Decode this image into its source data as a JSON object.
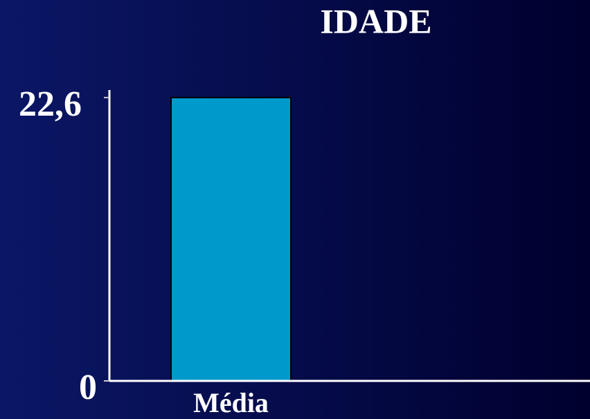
{
  "chart_data": {
    "type": "bar",
    "title": "IDADE",
    "categories": [
      "Média"
    ],
    "values": [
      22.6
    ],
    "color": "#0099cc",
    "ylim": [
      0,
      23.2
    ],
    "yticks": [
      0,
      {
        "value": 22.6,
        "label": "22,6"
      }
    ],
    "grid": false
  }
}
